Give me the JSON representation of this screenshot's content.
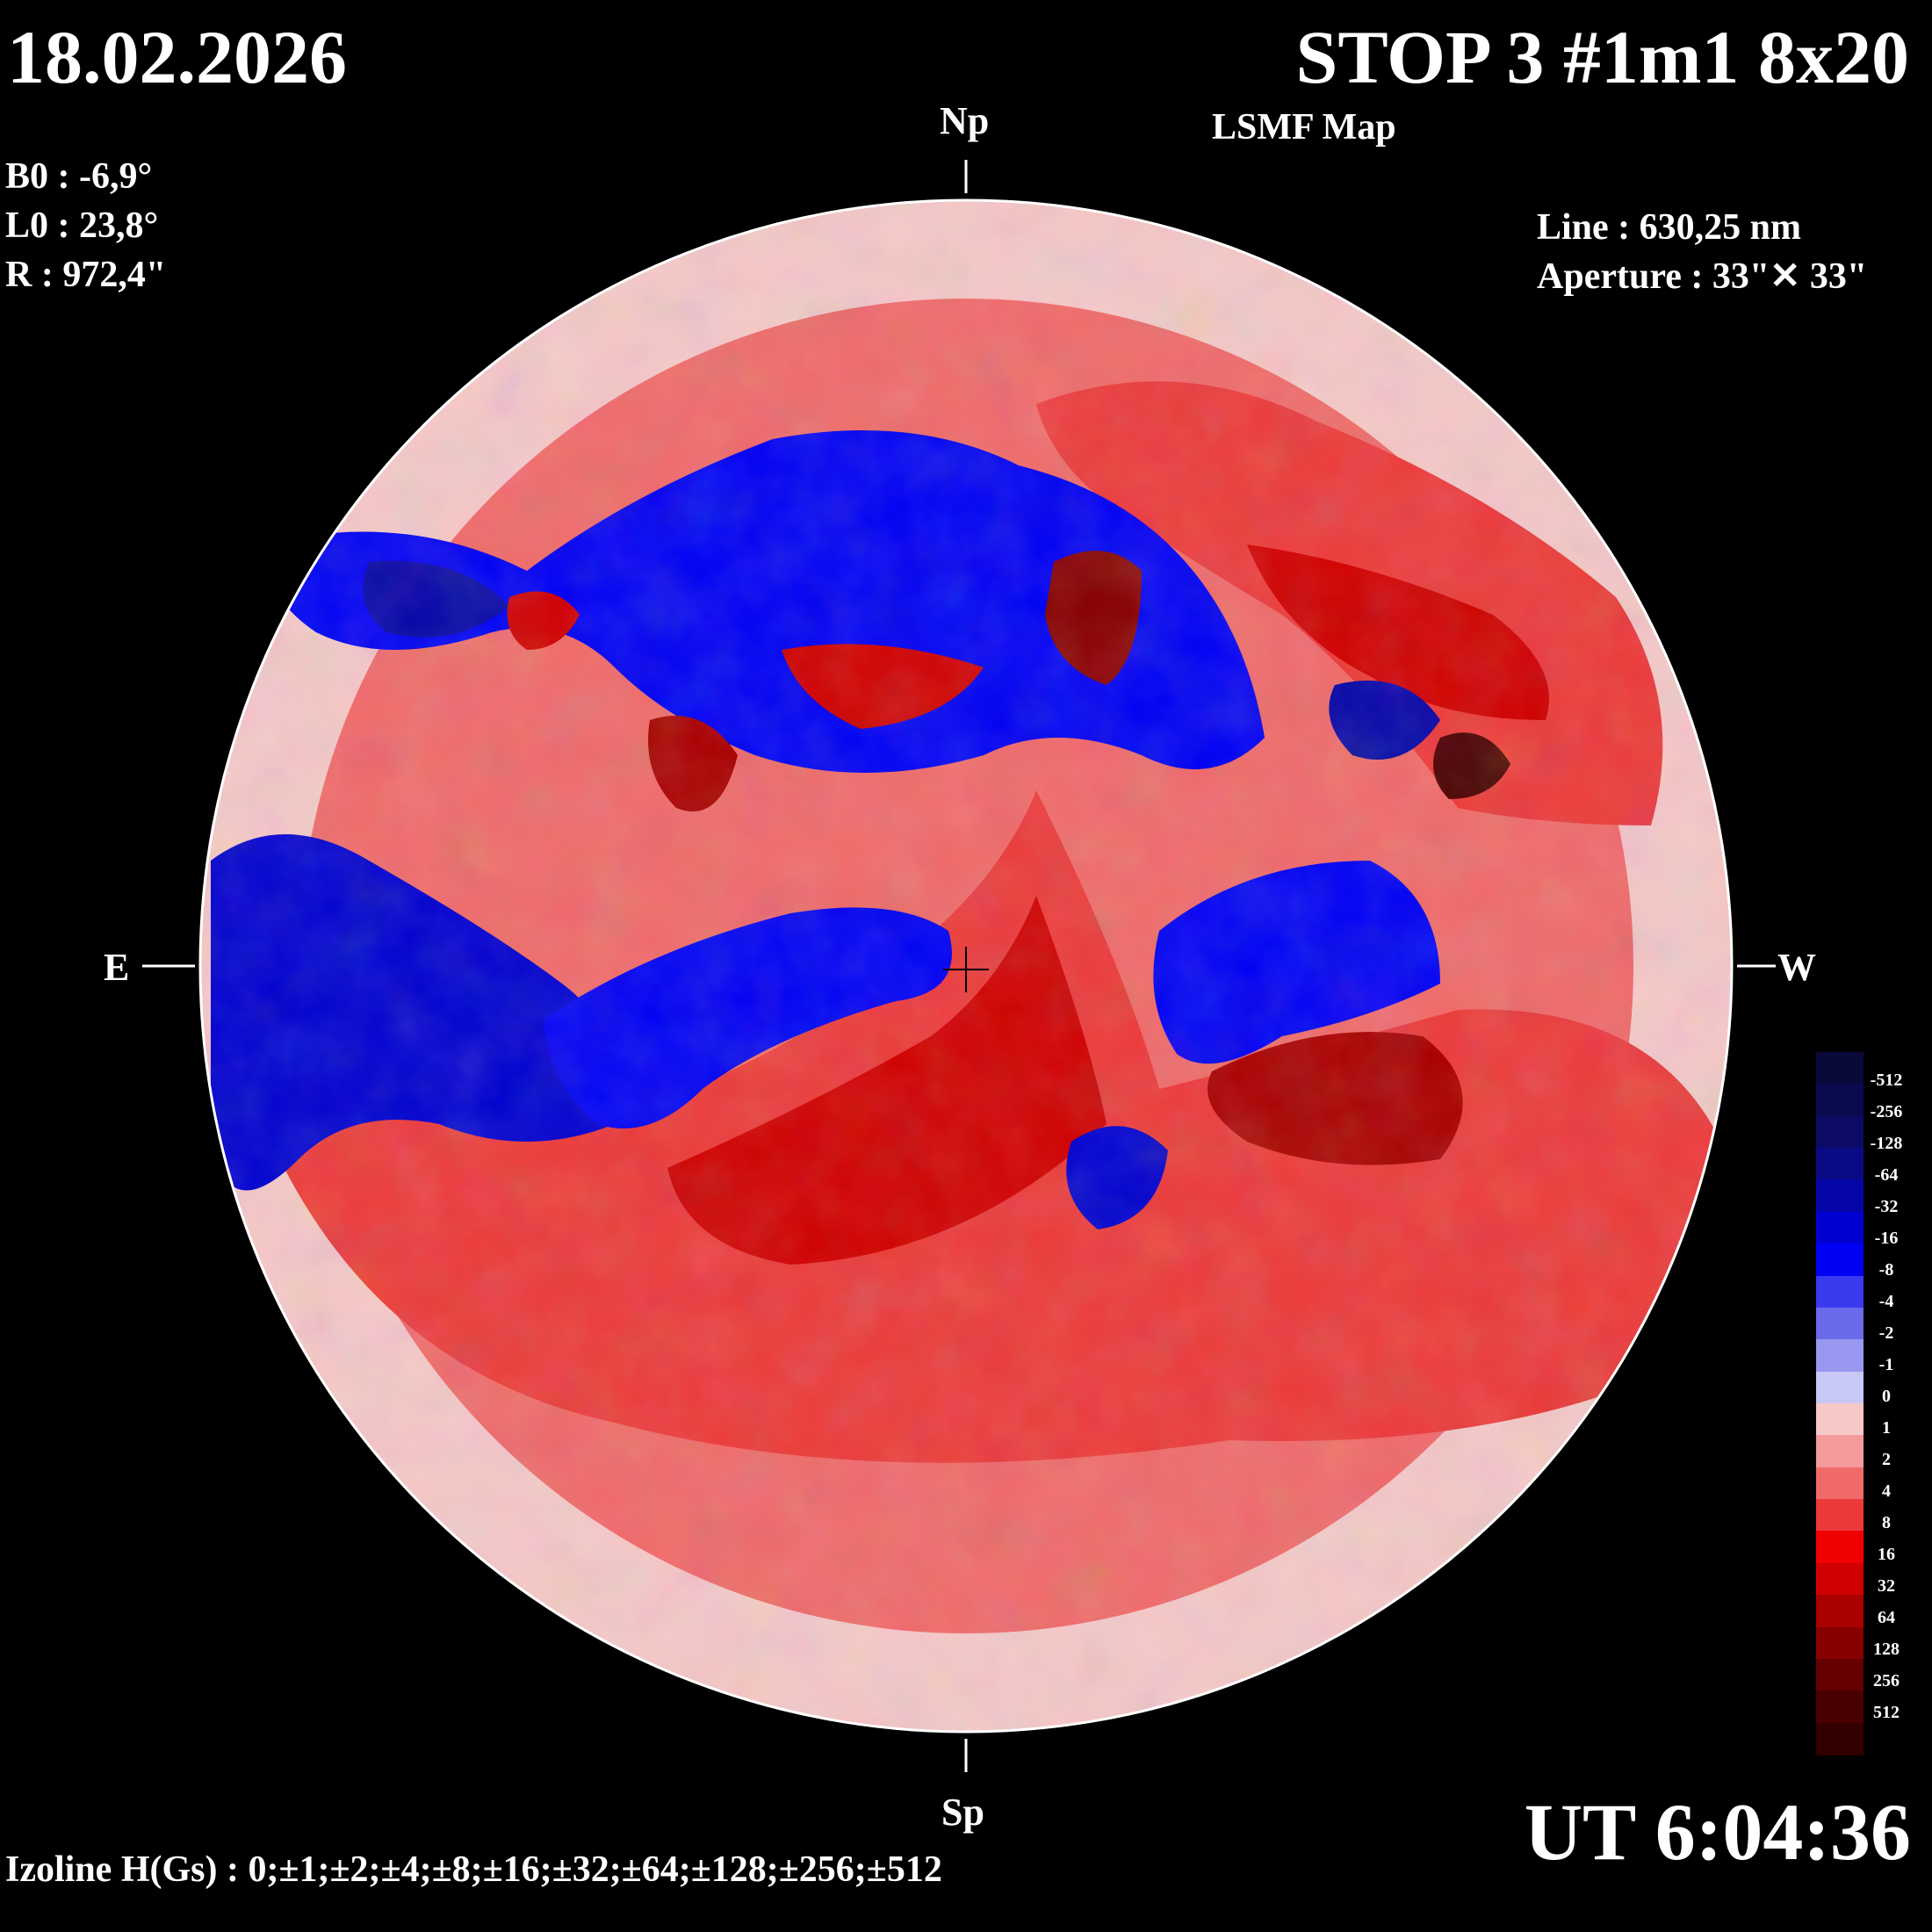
{
  "header": {
    "date": "18.02.2026",
    "title": "STOP 3 #1m1 8x20",
    "subtitle": "LSMF  Map"
  },
  "params": {
    "b0": "B0 : -6,9°",
    "l0": "L0 : 23,8°",
    "r": "R  : 972,4\"",
    "line": "Line :  630,25 nm",
    "aperture": "Aperture : 33\"✕ 33\""
  },
  "directions": {
    "north": "Np",
    "south": "Sp",
    "east": "E",
    "west": "W"
  },
  "footer": {
    "ut": "UT 6:04:36",
    "izoline": "Izoline H(Gs) : 0;±1;±2;±4;±8;±16;±32;±64;±128;±256;±512"
  },
  "legend": {
    "labels": [
      "-512",
      "-256",
      "-128",
      "-64",
      "-32",
      "-16",
      "-8",
      "-4",
      "-2",
      "-1",
      "0",
      "1",
      "2",
      "4",
      "8",
      "16",
      "32",
      "64",
      "128",
      "256",
      "512"
    ],
    "colors": [
      "#0a0a3a",
      "#0a0a4e",
      "#0c0c66",
      "#0a0a86",
      "#0606a8",
      "#0000d0",
      "#0000f4",
      "#3a3aee",
      "#6a6aea",
      "#9898f0",
      "#c8c8f6",
      "#f6c8c8",
      "#f49a9a",
      "#f06a6a",
      "#ec3a3a",
      "#f00000",
      "#d00000",
      "#aa0000",
      "#880000",
      "#660000",
      "#4a0000",
      "#330000"
    ]
  },
  "colors": {
    "background": "#000000",
    "positive": "#e83030",
    "negative": "#0000e8",
    "neutral_positive": "#f6c8c8",
    "neutral_negative": "#c8c8f6"
  }
}
